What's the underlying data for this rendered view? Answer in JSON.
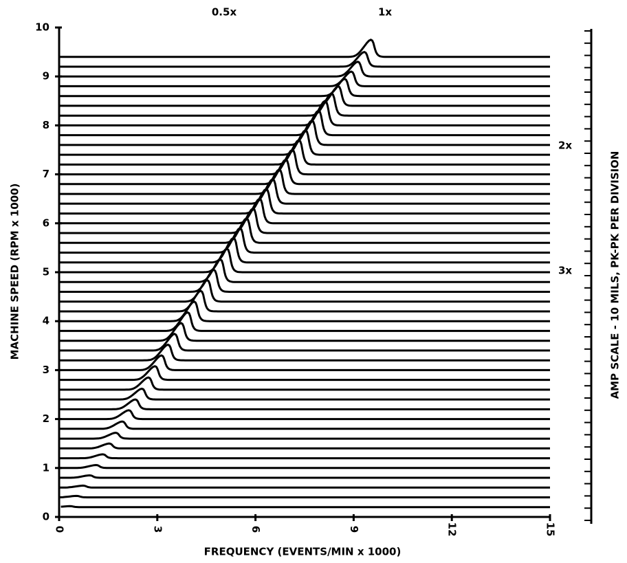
{
  "chart_data": {
    "type": "waterfall",
    "xlabel": "FREQUENCY (EVENTS/MIN x 1000)",
    "ylabel": "MACHINE SPEED (RPM x 1000)",
    "y2label": "AMP SCALE - 10 MILS, PK-PK PER DIVISION",
    "annotations": [
      "0.5x",
      "1x",
      "2x",
      "3x"
    ],
    "xlim": [
      0,
      15
    ],
    "xticks": [
      0,
      3,
      6,
      9,
      12,
      15
    ],
    "ylim": [
      0,
      10
    ],
    "yticks": [
      0,
      1,
      2,
      3,
      4,
      5,
      6,
      7,
      8,
      9,
      10
    ],
    "color": "#000000",
    "speeds": [
      0.2,
      0.4,
      0.6,
      0.8,
      1,
      1.2,
      1.4,
      1.6,
      1.8,
      2,
      2.2,
      2.4,
      2.6,
      2.8,
      3,
      3.2,
      3.4,
      3.6,
      3.8,
      4,
      4.2,
      4.4,
      4.6,
      4.8,
      5,
      5.2,
      5.4,
      5.6,
      5.8,
      6,
      6.2,
      6.4,
      6.6,
      6.8,
      7,
      7.2,
      7.4,
      7.6,
      7.8,
      8,
      8.2,
      8.4,
      8.6,
      8.8,
      9,
      9.2,
      9.4
    ],
    "amplitudes": [
      0.02,
      0.03,
      0.04,
      0.05,
      0.06,
      0.08,
      0.1,
      0.12,
      0.15,
      0.18,
      0.2,
      0.22,
      0.25,
      0.28,
      0.3,
      0.32,
      0.34,
      0.36,
      0.38,
      0.4,
      0.42,
      0.44,
      0.45,
      0.46,
      0.48,
      0.5,
      0.5,
      0.5,
      0.5,
      0.5,
      0.5,
      0.5,
      0.5,
      0.5,
      0.5,
      0.5,
      0.5,
      0.5,
      0.5,
      0.5,
      0.45,
      0.4,
      0.35,
      0.3,
      0.3,
      0.3,
      0.35
    ]
  }
}
